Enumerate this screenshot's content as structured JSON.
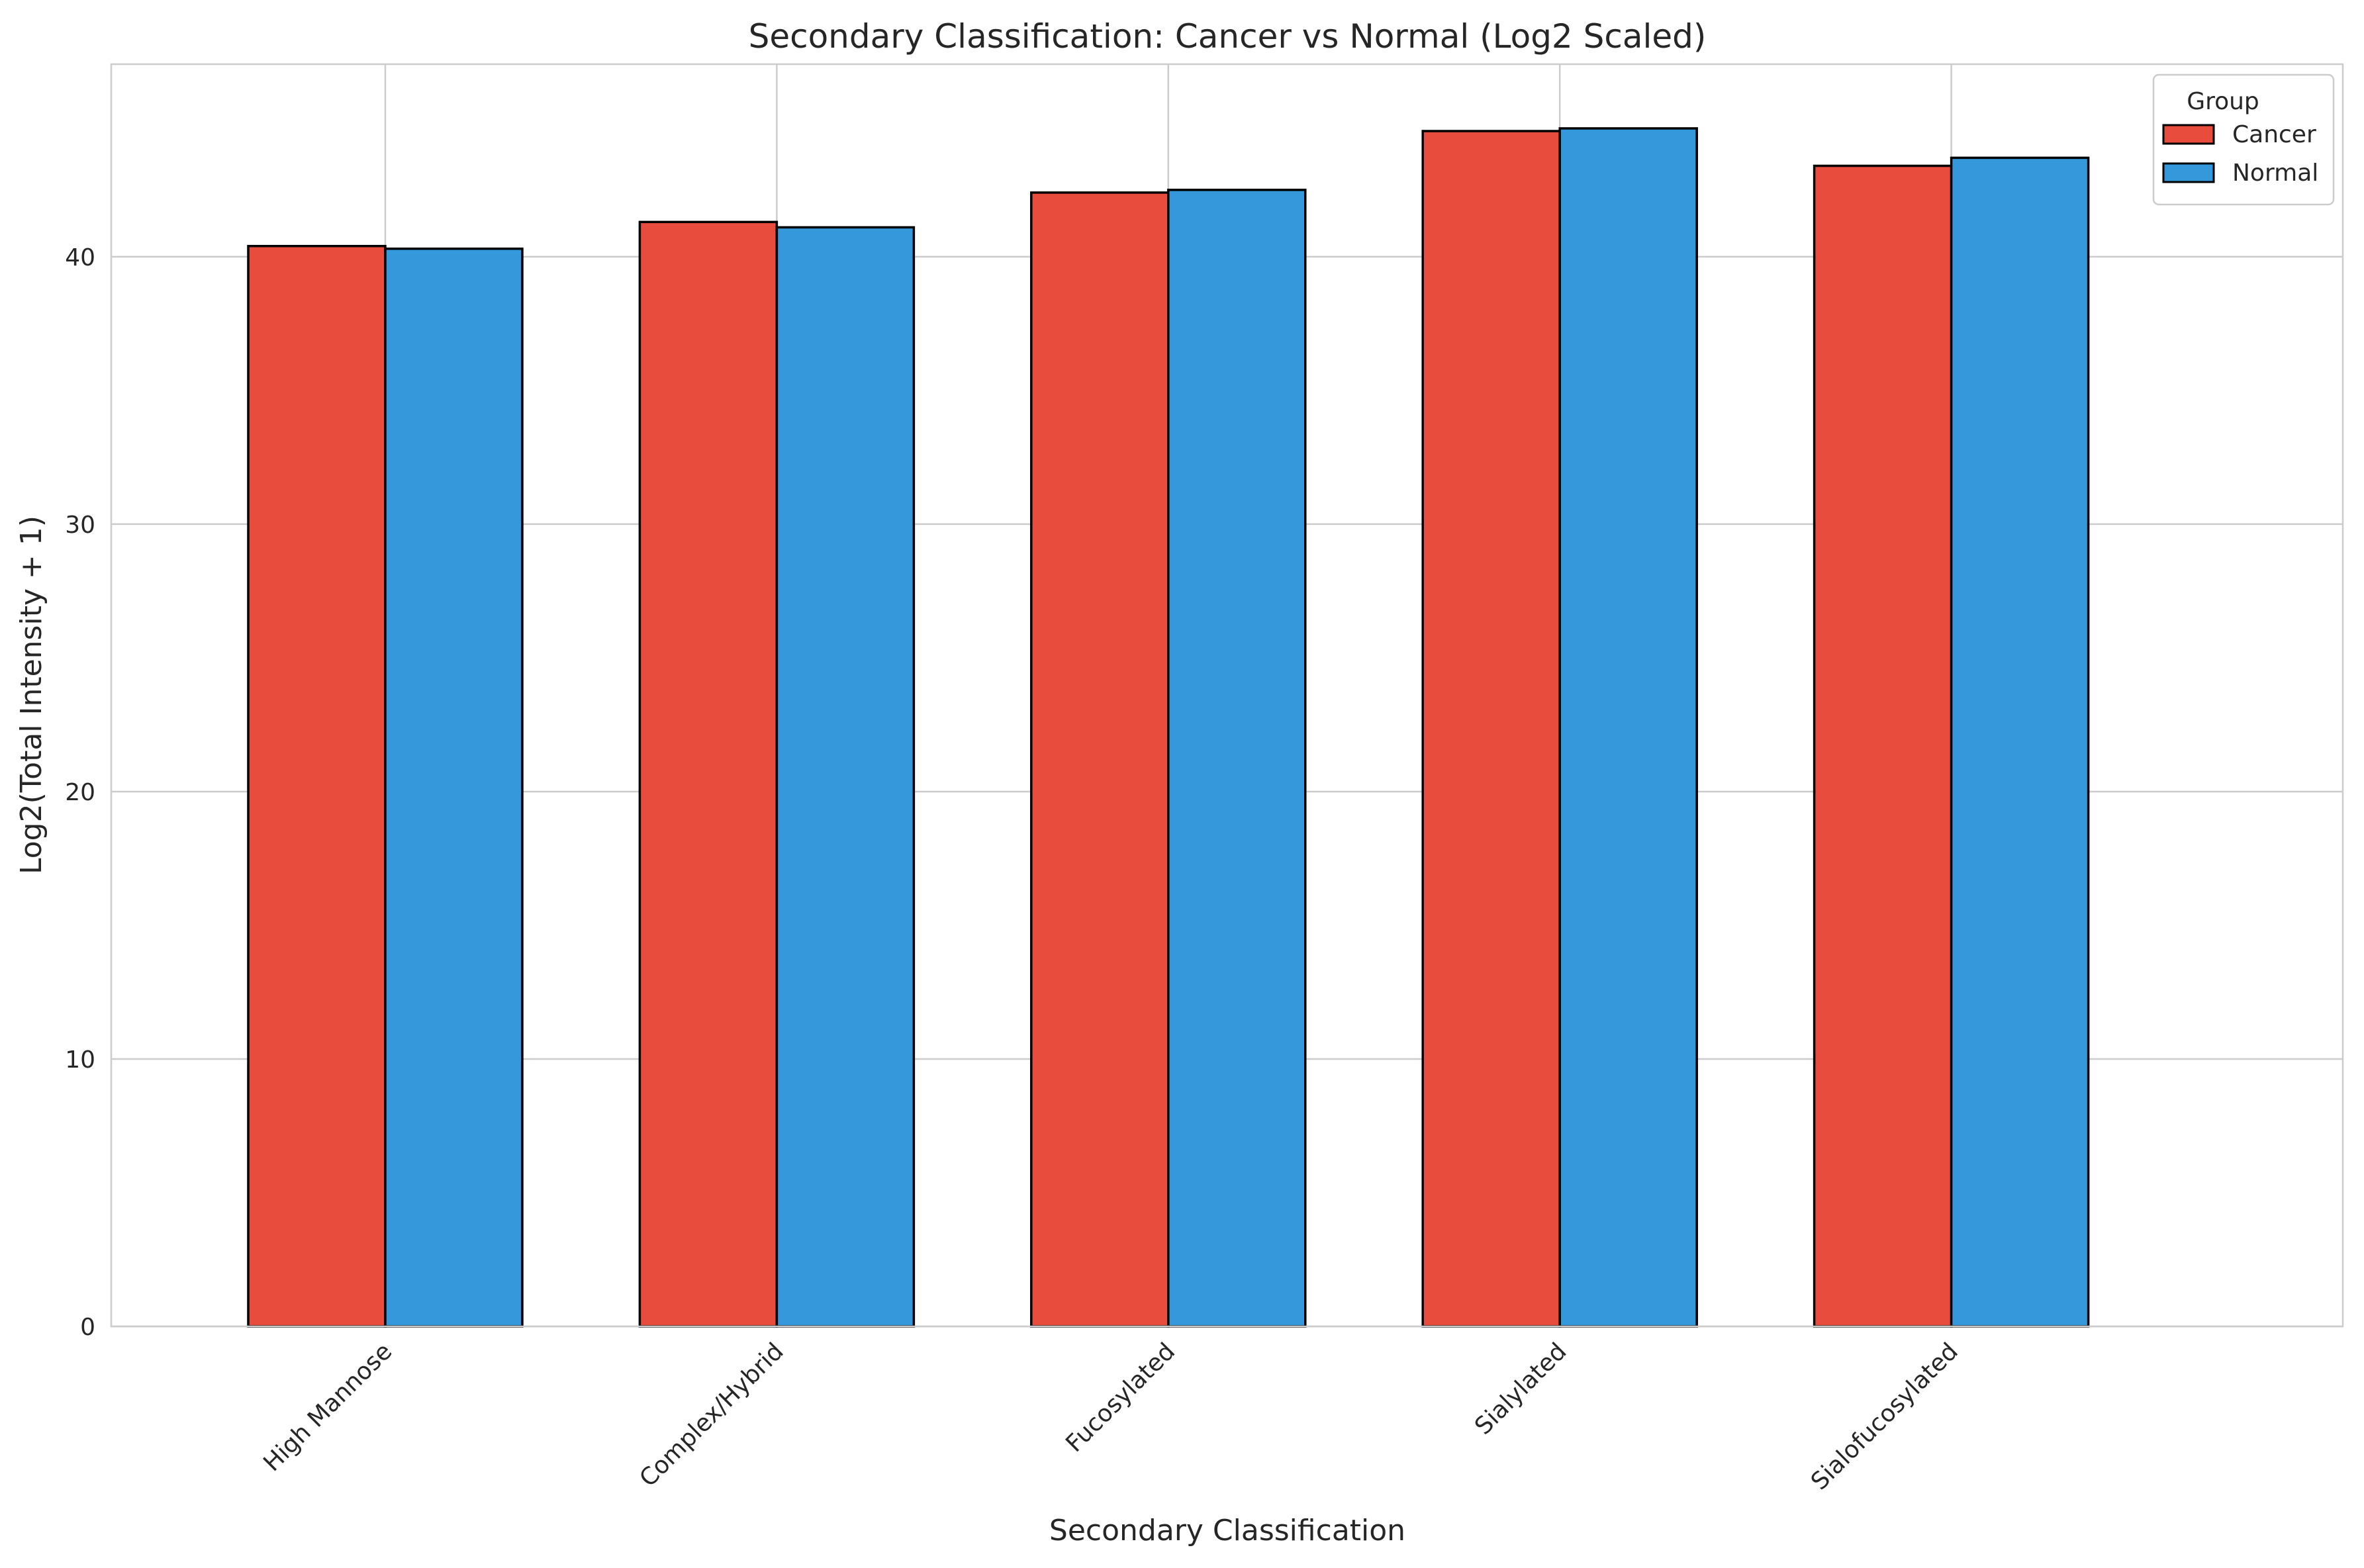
{
  "chart_data": {
    "type": "bar",
    "title": "Secondary Classification: Cancer vs Normal (Log2 Scaled)",
    "xlabel": "Secondary Classification",
    "ylabel": "Log2(Total Intensity + 1)",
    "categories": [
      "High Mannose",
      "Complex/Hybrid",
      "Fucosylated",
      "Sialylated",
      "Sialofucosylated"
    ],
    "series": [
      {
        "name": "Cancer",
        "color": "#e74c3c",
        "values": [
          40.4,
          41.3,
          42.4,
          44.7,
          43.4
        ]
      },
      {
        "name": "Normal",
        "color": "#3498db",
        "values": [
          40.3,
          41.1,
          42.5,
          44.8,
          43.7
        ]
      }
    ],
    "ylim": [
      0,
      47.2
    ],
    "yticks": [
      0,
      10,
      20,
      30,
      40
    ],
    "grid": true,
    "legend": {
      "title": "Group",
      "placement": "top-right"
    }
  }
}
